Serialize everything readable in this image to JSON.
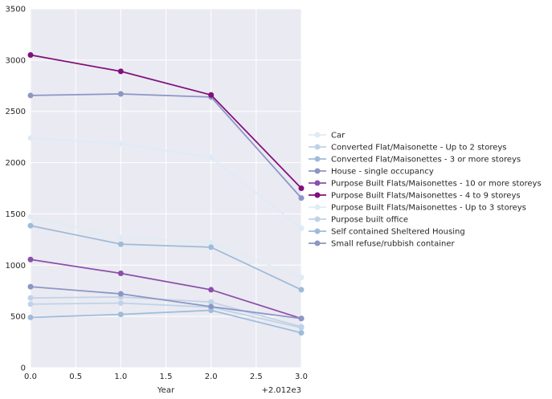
{
  "chart_data": {
    "type": "line",
    "title": "",
    "xlabel": "Year",
    "ylabel": "",
    "x_offset_label": "+2.012e3",
    "x": [
      0,
      1,
      2,
      3
    ],
    "xlim": [
      0,
      3
    ],
    "ylim": [
      0,
      3500
    ],
    "x_ticks": [
      "0.0",
      "0.5",
      "1.0",
      "1.5",
      "2.0",
      "2.5",
      "3.0"
    ],
    "y_ticks": [
      "0",
      "500",
      "1000",
      "1500",
      "2000",
      "2500",
      "3000",
      "3500"
    ],
    "grid": true,
    "legend_position": "right",
    "background": "#eaeaf2",
    "series": [
      {
        "name": "Car",
        "color": "#deebf7",
        "values": [
          2240,
          2185,
          2050,
          1360
        ]
      },
      {
        "name": "Converted Flat/Maisonette - Up to 2 storeys",
        "color": "#bfd3e6",
        "values": [
          680,
          690,
          640,
          400
        ]
      },
      {
        "name": "Converted Flat/Maisonettes - 3 or more storeys",
        "color": "#9ebcda",
        "values": [
          490,
          520,
          560,
          340
        ]
      },
      {
        "name": "House - single occupancy",
        "color": "#8c96c6",
        "values": [
          2655,
          2670,
          2640,
          1655
        ]
      },
      {
        "name": "Purpose Built Flats/Maisonettes - 10 or more storeys",
        "color": "#8c4fa9",
        "values": [
          1055,
          920,
          760,
          480
        ]
      },
      {
        "name": "Purpose Built Flats/Maisonettes - 4 to 9 storeys",
        "color": "#810f7c",
        "values": [
          3050,
          2890,
          2660,
          1750
        ]
      },
      {
        "name": "Purpose Built Flats/Maisonettes - Up to 3 storeys",
        "color": "#e0ecf4",
        "values": [
          1470,
          1270,
          1220,
          880
        ]
      },
      {
        "name": "Purpose built office",
        "color": "#bfd3e6",
        "values": [
          620,
          630,
          590,
          390
        ]
      },
      {
        "name": "Self contained Sheltered Housing",
        "color": "#9ebcda",
        "values": [
          1385,
          1205,
          1175,
          760
        ]
      },
      {
        "name": "Small refuse/rubbish container",
        "color": "#8c96c6",
        "values": [
          790,
          720,
          595,
          480
        ]
      }
    ]
  }
}
